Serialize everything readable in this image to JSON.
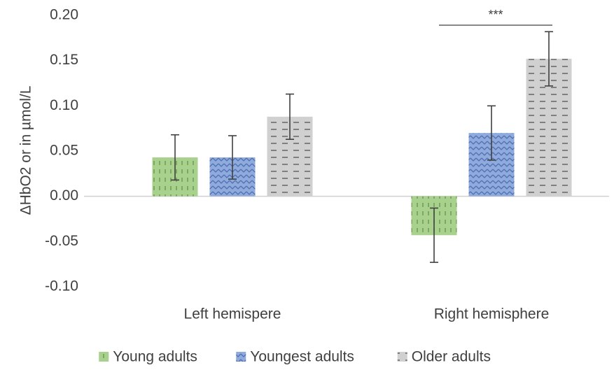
{
  "chart_data": {
    "type": "bar",
    "y_label": "ΔHbO2 or in µmol/L",
    "categories": [
      "Left hemispere",
      "Right hemisphere"
    ],
    "series": [
      {
        "name": "Young adults",
        "color": "#a9d18e",
        "values": [
          0.043,
          -0.043
        ],
        "errors": [
          0.025,
          0.03
        ]
      },
      {
        "name": "Youngest adults",
        "color": "#8faadc",
        "values": [
          0.043,
          0.07
        ],
        "errors": [
          0.024,
          0.03
        ]
      },
      {
        "name": "Older adults",
        "color": "#d0d0d0",
        "values": [
          0.088,
          0.152
        ],
        "errors": [
          0.025,
          0.03
        ]
      }
    ],
    "annotation": "***",
    "ylim": [
      -0.1,
      0.2
    ],
    "yticks": [
      {
        "value": -0.1,
        "label": "-0.10"
      },
      {
        "value": -0.05,
        "label": "-0.05"
      },
      {
        "value": 0,
        "label": "0.00"
      },
      {
        "value": 0.05,
        "label": "0.05"
      },
      {
        "value": 0.1,
        "label": "0.10"
      },
      {
        "value": 0.15,
        "label": "0.15"
      },
      {
        "value": 0.2,
        "label": "0.20"
      }
    ],
    "grid": false,
    "legend": "bottom"
  }
}
